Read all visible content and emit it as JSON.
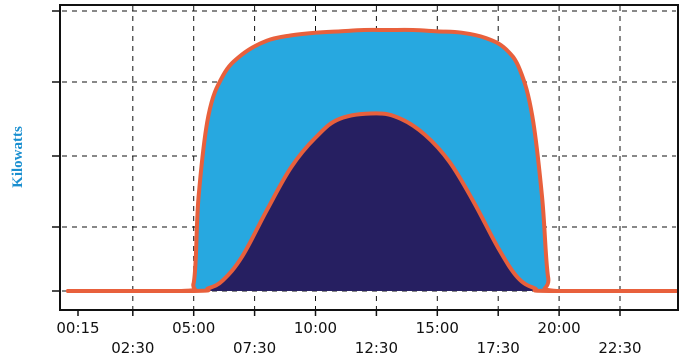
{
  "chart_data": {
    "type": "area",
    "title": "",
    "xlabel": "",
    "ylabel": "Kilowatts",
    "grid": true,
    "grid_style": "dashed",
    "y_tick_count": 5,
    "x_tick_labels": [
      "00:15",
      "02:30",
      "05:00",
      "07:30",
      "10:00",
      "12:30",
      "15:00",
      "17:30",
      "20:00",
      "22:30"
    ],
    "x_tick_hours": [
      0.25,
      2.5,
      5.0,
      7.5,
      10.0,
      12.5,
      15.0,
      17.5,
      20.0,
      22.5
    ],
    "xlim_hours": [
      0,
      24
    ],
    "ylim": [
      0,
      1.0
    ],
    "series": [
      {
        "role": "outer",
        "fill": "#27a8e0",
        "stroke": "#e8603c",
        "x_hours": [
          0,
          4.5,
          5.0,
          5.2,
          5.6,
          6.2,
          7.0,
          8.0,
          9.0,
          10.0,
          11.0,
          12.0,
          13.0,
          14.0,
          15.0,
          16.0,
          17.0,
          17.8,
          18.4,
          18.9,
          19.3,
          19.55,
          19.9,
          24
        ],
        "values": [
          0.0,
          0.0,
          0.03,
          0.35,
          0.65,
          0.8,
          0.88,
          0.93,
          0.95,
          0.96,
          0.965,
          0.97,
          0.97,
          0.97,
          0.965,
          0.96,
          0.94,
          0.9,
          0.82,
          0.65,
          0.35,
          0.05,
          0.0,
          0.0
        ]
      },
      {
        "role": "inner",
        "fill": "#261f61",
        "stroke": "#e8603c",
        "x_hours": [
          0,
          5.0,
          5.6,
          6.2,
          7.0,
          8.0,
          9.0,
          10.0,
          11.0,
          12.5,
          13.5,
          14.5,
          15.5,
          16.5,
          17.5,
          18.3,
          19.0,
          19.6,
          24
        ],
        "values": [
          0.0,
          0.0,
          0.01,
          0.04,
          0.13,
          0.3,
          0.46,
          0.57,
          0.64,
          0.66,
          0.64,
          0.58,
          0.48,
          0.33,
          0.16,
          0.05,
          0.01,
          0.0,
          0.0
        ]
      }
    ]
  },
  "colors": {
    "ylabel": "#1a8fd0",
    "grid": "#111111",
    "frame": "#111111"
  }
}
